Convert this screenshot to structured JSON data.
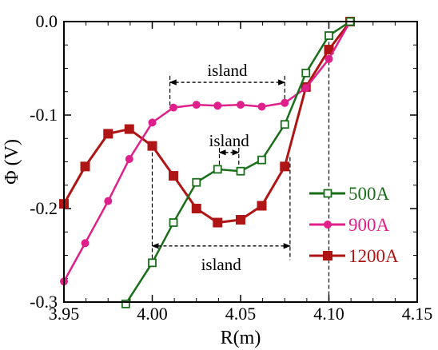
{
  "chart_data": {
    "type": "line",
    "xlabel": "R(m)",
    "ylabel": "Φ (V)",
    "xlim": [
      3.95,
      4.15
    ],
    "ylim": [
      -0.3,
      0.0
    ],
    "x_ticks": [
      "3.95",
      "4.00",
      "4.05",
      "4.10",
      "4.15"
    ],
    "y_ticks": [
      "0.0",
      "-0.1",
      "-0.2",
      "-0.3"
    ],
    "series": [
      {
        "name": "500A",
        "color": "#1a6e1a",
        "marker": "open-square",
        "points": [
          [
            3.985,
            -0.302
          ],
          [
            4.0,
            -0.258
          ],
          [
            4.012,
            -0.215
          ],
          [
            4.025,
            -0.172
          ],
          [
            4.037,
            -0.158
          ],
          [
            4.05,
            -0.16
          ],
          [
            4.062,
            -0.148
          ],
          [
            4.075,
            -0.11
          ],
          [
            4.087,
            -0.055
          ],
          [
            4.1,
            -0.015
          ],
          [
            4.112,
            0.0
          ]
        ]
      },
      {
        "name": "900A",
        "color": "#e0208a",
        "marker": "filled-circle",
        "points": [
          [
            3.95,
            -0.278
          ],
          [
            3.962,
            -0.237
          ],
          [
            3.975,
            -0.192
          ],
          [
            3.987,
            -0.147
          ],
          [
            4.0,
            -0.108
          ],
          [
            4.012,
            -0.092
          ],
          [
            4.025,
            -0.089
          ],
          [
            4.037,
            -0.09
          ],
          [
            4.05,
            -0.089
          ],
          [
            4.062,
            -0.091
          ],
          [
            4.075,
            -0.087
          ],
          [
            4.087,
            -0.071
          ],
          [
            4.1,
            -0.04
          ],
          [
            4.112,
            0.0
          ]
        ]
      },
      {
        "name": "1200A",
        "color": "#b01515",
        "marker": "filled-square",
        "points": [
          [
            3.95,
            -0.195
          ],
          [
            3.962,
            -0.155
          ],
          [
            3.975,
            -0.12
          ],
          [
            3.987,
            -0.115
          ],
          [
            4.0,
            -0.133
          ],
          [
            4.012,
            -0.165
          ],
          [
            4.025,
            -0.2
          ],
          [
            4.037,
            -0.215
          ],
          [
            4.05,
            -0.212
          ],
          [
            4.062,
            -0.197
          ],
          [
            4.075,
            -0.155
          ],
          [
            4.087,
            -0.07
          ],
          [
            4.1,
            -0.03
          ],
          [
            4.112,
            0.0
          ]
        ]
      }
    ],
    "annotations": [
      {
        "text": "island",
        "from": 4.01,
        "to": 4.075,
        "y": -0.065
      },
      {
        "text": "island",
        "from": 4.038,
        "to": 4.049,
        "y": -0.14
      },
      {
        "text": "island",
        "from": 4.0,
        "to": 4.078,
        "y": -0.24
      }
    ],
    "guides": [
      {
        "x": 4.0,
        "y_top": -0.133,
        "y_bottom": -0.258
      },
      {
        "x": 4.01,
        "y_top": -0.058,
        "y_bottom": -0.092
      },
      {
        "x": 4.038,
        "y_top": -0.135,
        "y_bottom": -0.158
      },
      {
        "x": 4.049,
        "y_top": -0.135,
        "y_bottom": -0.16
      },
      {
        "x": 4.075,
        "y_top": -0.058,
        "y_bottom": -0.087
      },
      {
        "x": 4.078,
        "y_top": -0.145,
        "y_bottom": -0.255
      },
      {
        "x": 4.1,
        "y_top": -0.015,
        "y_bottom": -0.3
      }
    ],
    "legend": "right-middle"
  }
}
